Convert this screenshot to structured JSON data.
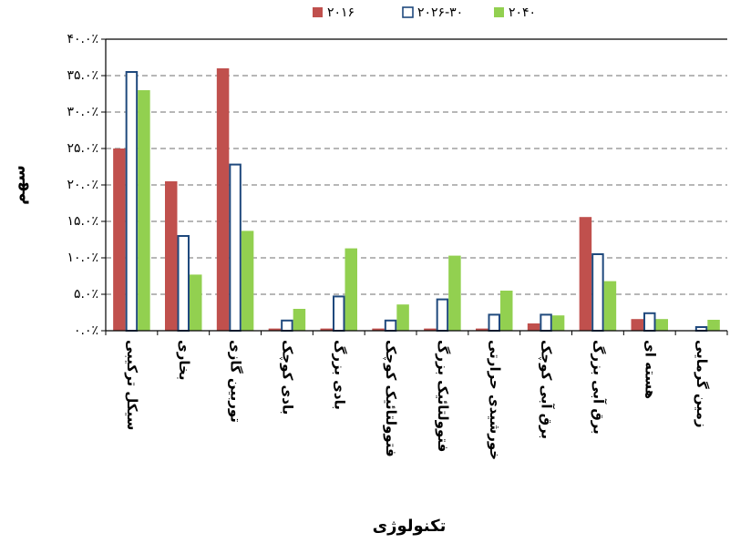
{
  "chart_data": {
    "type": "bar",
    "title": "",
    "xlabel": "تکنولوژی",
    "ylabel": "سهم",
    "ylim": [
      0,
      40
    ],
    "yticks": [
      "۰.۰٪",
      "۵.۰٪",
      "۱۰.۰٪",
      "۱۵.۰٪",
      "۲۰.۰٪",
      "۲۵.۰٪",
      "۳۰.۰٪",
      "۳۵.۰٪",
      "۴۰.۰٪"
    ],
    "grid": true,
    "legend_position": "top",
    "categories": [
      "سیکل ترکیبی",
      "بخاری",
      "توربین گازی",
      "بادی کوچک",
      "بادی بزرگ",
      "فتوولتائیک کوچک",
      "فتوولتائیک بزرگ",
      "خورشیدی حرارتی",
      "برق آبی کوچک",
      "برق آبی بزرگ",
      "هسته ای",
      "زمین گرمایی"
    ],
    "series": [
      {
        "name": "۲۰۱۶",
        "color": "#C0504D",
        "style": "filled",
        "values": [
          25.0,
          20.5,
          36.0,
          0.3,
          0.3,
          0.3,
          0.3,
          0.3,
          1.0,
          15.6,
          1.6,
          0.0
        ]
      },
      {
        "name": "۲۰۲۶-۳۰",
        "color": "#1F497D",
        "style": "outline",
        "values": [
          35.5,
          13.0,
          22.8,
          1.4,
          4.7,
          1.4,
          4.3,
          2.2,
          2.2,
          10.5,
          2.4,
          0.5
        ]
      },
      {
        "name": "۲۰۴۰",
        "color": "#92D050",
        "style": "filled",
        "values": [
          33.0,
          7.7,
          13.7,
          3.0,
          11.3,
          3.6,
          10.3,
          5.5,
          2.1,
          6.8,
          1.6,
          1.5
        ]
      }
    ]
  }
}
